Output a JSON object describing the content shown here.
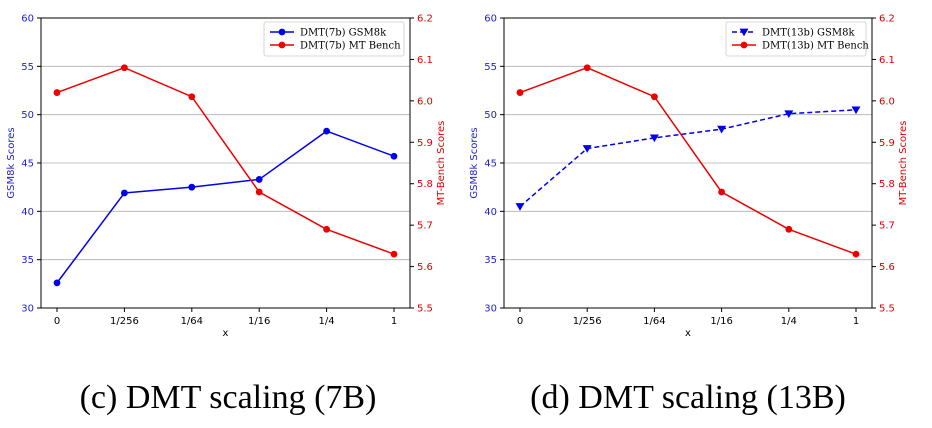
{
  "chart_data": [
    {
      "type": "line",
      "categories": [
        "0",
        "1/256",
        "1/64",
        "1/16",
        "1/4",
        "1"
      ],
      "xlabel": "x",
      "ylabel": "GSM8k Scores",
      "ylim": [
        30,
        60
      ],
      "yticks": [
        "30",
        "35",
        "40",
        "45",
        "50",
        "55",
        "60"
      ],
      "ylabel_right": "MT-Bench Scores",
      "ylim_right": [
        5.5,
        6.2
      ],
      "yticks_right": [
        "5.5",
        "5.6",
        "5.7",
        "5.8",
        "5.9",
        "6.0",
        "6.1",
        "6.2"
      ],
      "grid": "horizontal",
      "legend_position": "top-right",
      "caption": "(c) DMT scaling (7B)",
      "series": [
        {
          "name": "DMT(7b) GSM8k",
          "axis": "left",
          "color": "#0000ee",
          "marker": "circle",
          "dash": "solid",
          "values": [
            32.6,
            41.9,
            42.5,
            43.3,
            48.3,
            45.7
          ]
        },
        {
          "name": "DMT(7b) MT Bench",
          "axis": "right",
          "color": "#ee0000",
          "marker": "circle",
          "dash": "solid",
          "values": [
            6.02,
            6.08,
            6.01,
            5.78,
            5.69,
            5.63
          ]
        }
      ]
    },
    {
      "type": "line",
      "categories": [
        "0",
        "1/256",
        "1/64",
        "1/16",
        "1/4",
        "1"
      ],
      "xlabel": "x",
      "ylabel": "GSM8k Scores",
      "ylim": [
        30,
        60
      ],
      "yticks": [
        "30",
        "35",
        "40",
        "45",
        "50",
        "55",
        "60"
      ],
      "ylabel_right": "MT-Bench Scores",
      "ylim_right": [
        5.5,
        6.2
      ],
      "yticks_right": [
        "5.5",
        "5.6",
        "5.7",
        "5.8",
        "5.9",
        "6.0",
        "6.1",
        "6.2"
      ],
      "grid": "horizontal",
      "legend_position": "top-right",
      "caption": "(d) DMT scaling (13B)",
      "series": [
        {
          "name": "DMT(13b) GSM8k",
          "axis": "left",
          "color": "#0000ee",
          "marker": "triangle-down",
          "dash": "dashed",
          "values": [
            40.5,
            46.5,
            47.6,
            48.5,
            50.1,
            50.5
          ]
        },
        {
          "name": "DMT(13b) MT Bench",
          "axis": "right",
          "color": "#ee0000",
          "marker": "circle",
          "dash": "solid",
          "values": [
            6.02,
            6.08,
            6.01,
            5.78,
            5.69,
            5.63
          ]
        }
      ]
    }
  ]
}
